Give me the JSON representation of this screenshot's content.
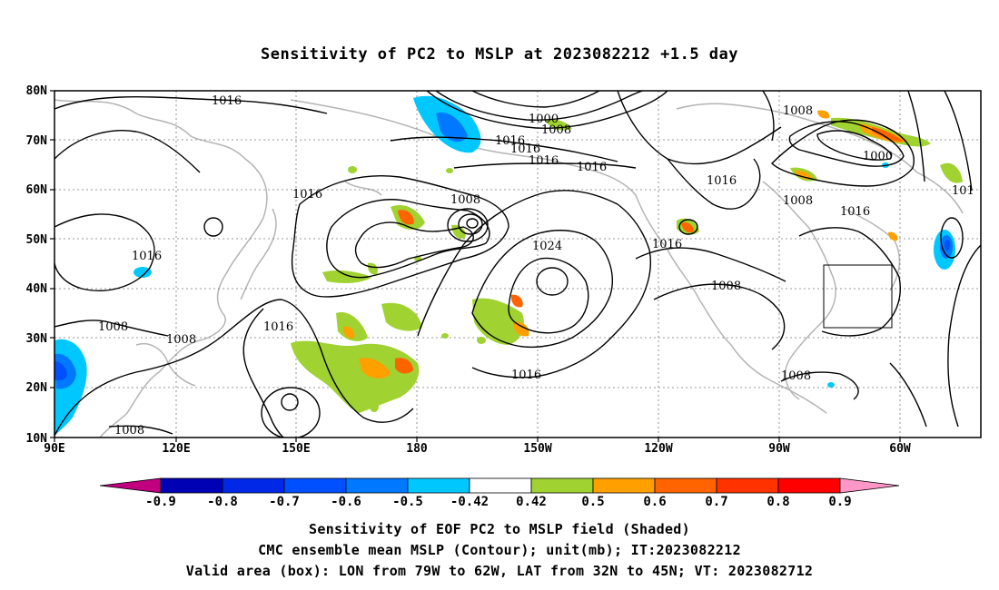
{
  "title": "Sensitivity of PC2 to MSLP at 2023082212 +1.5 day",
  "lat_labels": [
    "80N",
    "70N",
    "60N",
    "50N",
    "40N",
    "30N",
    "20N",
    "10N"
  ],
  "lon_labels": [
    "90E",
    "120E",
    "150E",
    "180",
    "150W",
    "120W",
    "90W",
    "60W"
  ],
  "map_extent": {
    "lon_min": 90,
    "lon_max": 310,
    "lat_min": 10,
    "lat_max": 80
  },
  "contour_labels": [
    "1016",
    "1000",
    "1008",
    "1016",
    "1016",
    "1016",
    "1016",
    "1008",
    "1016",
    "1024",
    "1016",
    "1016",
    "1016",
    "1008",
    "1008",
    "1000",
    "1016",
    "1008",
    "1016",
    "1008",
    "1008",
    "1016",
    "1008",
    "1008",
    "101"
  ],
  "valid_box": {
    "lon": [
      281,
      298
    ],
    "lat": [
      32,
      45
    ]
  },
  "colorbar": {
    "ticks": [
      "-0.9",
      "-0.8",
      "-0.7",
      "-0.6",
      "-0.5",
      "-0.42",
      "0.42",
      "0.5",
      "0.6",
      "0.7",
      "0.8",
      "0.9"
    ],
    "colors": [
      "#c0007f",
      "#0000b4",
      "#0028e6",
      "#0050ff",
      "#0078ff",
      "#00c8ff",
      "#ffffff",
      "#a0d232",
      "#ffa000",
      "#ff6400",
      "#ff3200",
      "#ff0000",
      "#ff96c8"
    ]
  },
  "captions": {
    "line1": "Sensitivity of EOF PC2 to MSLP field (Shaded)",
    "line2": "CMC ensemble mean MSLP (Contour); unit(mb); IT:2023082212",
    "line3": "Valid area (box): LON from 79W to 62W, LAT from 32N to 45N; VT: 2023082712"
  }
}
